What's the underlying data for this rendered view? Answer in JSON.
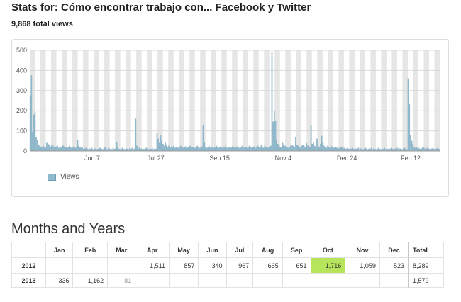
{
  "header": {
    "title": "Stats for: Cómo encontrar trabajo con... Facebook y Twitter",
    "total_views": "9,868 total views"
  },
  "colors": {
    "bar": "#8fb9cc",
    "bar_stroke": "#6e9db3",
    "stripe": "#e6e6e6",
    "highlight": "#b6e45b"
  },
  "chart_data": {
    "type": "bar",
    "title": "",
    "xlabel": "",
    "ylabel": "",
    "ylim": [
      0,
      500
    ],
    "yticks": [
      "0",
      "100",
      "200",
      "300",
      "400",
      "500"
    ],
    "xtick_labels": [
      "Jun 7",
      "Jul 27",
      "Sep 15",
      "Nov 4",
      "Dec 24",
      "Feb 12"
    ],
    "grid": true,
    "legend": "bottom-left",
    "series": [
      {
        "name": "Views",
        "values": [
          270,
          375,
          95,
          180,
          195,
          70,
          55,
          30,
          25,
          20,
          18,
          25,
          15,
          20,
          40,
          35,
          30,
          20,
          25,
          30,
          20,
          18,
          22,
          25,
          15,
          20,
          18,
          30,
          25,
          20,
          18,
          15,
          20,
          25,
          18,
          15,
          20,
          22,
          15,
          18,
          55,
          25,
          20,
          15,
          18,
          10,
          12,
          15,
          10,
          8,
          12,
          10,
          15,
          8,
          10,
          12,
          8,
          10,
          12,
          15,
          10,
          8,
          12,
          20,
          10,
          8,
          15,
          10,
          12,
          8,
          15,
          10,
          12,
          45,
          15,
          10,
          8,
          12,
          15,
          10,
          8,
          12,
          10,
          8,
          12,
          10,
          15,
          8,
          12,
          160,
          25,
          10,
          15,
          10,
          12,
          8,
          10,
          12,
          15,
          10,
          8,
          12,
          10,
          15,
          8,
          12,
          10,
          90,
          60,
          40,
          80,
          50,
          35,
          25,
          45,
          30,
          20,
          25,
          15,
          20,
          18,
          25,
          15,
          20,
          18,
          15,
          20,
          25,
          18,
          15,
          20,
          22,
          15,
          18,
          20,
          25,
          15,
          20,
          18,
          15,
          20,
          25,
          18,
          15,
          20,
          22,
          130,
          45,
          20,
          15,
          18,
          25,
          15,
          20,
          18,
          15,
          20,
          25,
          18,
          15,
          20,
          22,
          15,
          18,
          20,
          25,
          15,
          20,
          18,
          15,
          20,
          25,
          18,
          15,
          20,
          22,
          15,
          18,
          20,
          25,
          15,
          20,
          18,
          15,
          20,
          25,
          18,
          15,
          20,
          22,
          15,
          18,
          25,
          20,
          15,
          30,
          20,
          15,
          25,
          20,
          15,
          18,
          20,
          25,
          490,
          145,
          200,
          150,
          55,
          35,
          25,
          20,
          18,
          40,
          30,
          25,
          20,
          18,
          15,
          20,
          25,
          30,
          25,
          20,
          70,
          30,
          25,
          20,
          15,
          25,
          30,
          25,
          20,
          40,
          30,
          25,
          20,
          130,
          35,
          45,
          25,
          20,
          60,
          25,
          20,
          35,
          75,
          40,
          25,
          20,
          15,
          25,
          20,
          15,
          25,
          20,
          15,
          18,
          20,
          15,
          12,
          15,
          18,
          20,
          12,
          15,
          10,
          12,
          15,
          10,
          8,
          12,
          15,
          10,
          8,
          12,
          10,
          15,
          8,
          12,
          10,
          8,
          12,
          15,
          10,
          8,
          12,
          10,
          15,
          8,
          12,
          10,
          8,
          12,
          15,
          10,
          8,
          12,
          10,
          15,
          8,
          12,
          10,
          8,
          12,
          15,
          10,
          8,
          12,
          10,
          15,
          8,
          12,
          10,
          8,
          12,
          15,
          10,
          8,
          360,
          235,
          80,
          50,
          35,
          20,
          15,
          18,
          12,
          15,
          10,
          12,
          15,
          18,
          12,
          10,
          15,
          12,
          10,
          8,
          12,
          15,
          10,
          8,
          12,
          15,
          10
        ]
      }
    ]
  },
  "months_years": {
    "section_title": "Months and Years",
    "headers": [
      "",
      "Jan",
      "Feb",
      "Mar",
      "Apr",
      "May",
      "Jun",
      "Jul",
      "Aug",
      "Sep",
      "Oct",
      "Nov",
      "Dec",
      "Total"
    ],
    "rows": [
      {
        "year": "2012",
        "cells": [
          "",
          "",
          "",
          "1,511",
          "857",
          "340",
          "967",
          "665",
          "651",
          "1,716",
          "1,059",
          "523"
        ],
        "total": "8,289"
      },
      {
        "year": "2013",
        "cells": [
          "336",
          "1,162",
          "81",
          "",
          "",
          "",
          "",
          "",
          "",
          "",
          "",
          ""
        ],
        "total": "1,579"
      }
    ]
  }
}
